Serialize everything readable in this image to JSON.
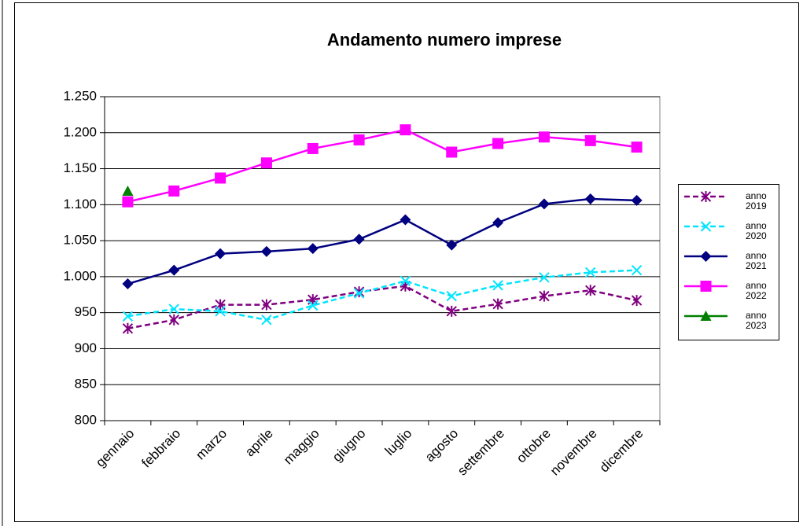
{
  "chart_data": {
    "type": "line",
    "title": "Andamento numero imprese",
    "categories": [
      "gennaio",
      "febbraio",
      "marzo",
      "aprile",
      "maggio",
      "giugno",
      "luglio",
      "agosto",
      "settembre",
      "ottobre",
      "novembre",
      "dicembre"
    ],
    "series": [
      {
        "name": "anno 2019",
        "color": "#800080",
        "marker": "asterisk",
        "dashed": true,
        "values": [
          928,
          940,
          961,
          961,
          968,
          979,
          987,
          952,
          962,
          973,
          981,
          967
        ]
      },
      {
        "name": "anno 2020",
        "color": "#00e5ff",
        "marker": "x",
        "dashed": true,
        "values": [
          945,
          955,
          952,
          940,
          960,
          977,
          994,
          973,
          988,
          999,
          1006,
          1009
        ]
      },
      {
        "name": "anno 2021",
        "color": "#000080",
        "marker": "diamond",
        "dashed": false,
        "values": [
          990,
          1009,
          1032,
          1035,
          1039,
          1052,
          1079,
          1044,
          1075,
          1101,
          1108,
          1106
        ]
      },
      {
        "name": "anno 2022",
        "color": "#ff00ff",
        "marker": "square",
        "dashed": false,
        "values": [
          1104,
          1119,
          1137,
          1158,
          1178,
          1190,
          1204,
          1173,
          1185,
          1194,
          1189,
          1180
        ]
      },
      {
        "name": "anno 2023",
        "color": "#008000",
        "marker": "triangle",
        "dashed": false,
        "values": [
          1119,
          null,
          null,
          null,
          null,
          null,
          null,
          null,
          null,
          null,
          null,
          null
        ]
      }
    ],
    "ylim": [
      800,
      1250
    ],
    "yticks": [
      800,
      850,
      900,
      950,
      {
        "value": 1000,
        "label": "1.000"
      },
      {
        "value": 1050,
        "label": "1.050"
      },
      {
        "value": 1100,
        "label": "1.100"
      },
      {
        "value": 1150,
        "label": "1.150"
      },
      {
        "value": 1200,
        "label": "1.200"
      },
      {
        "value": 1250,
        "label": "1.250"
      }
    ],
    "grid": true,
    "legend": "right"
  }
}
